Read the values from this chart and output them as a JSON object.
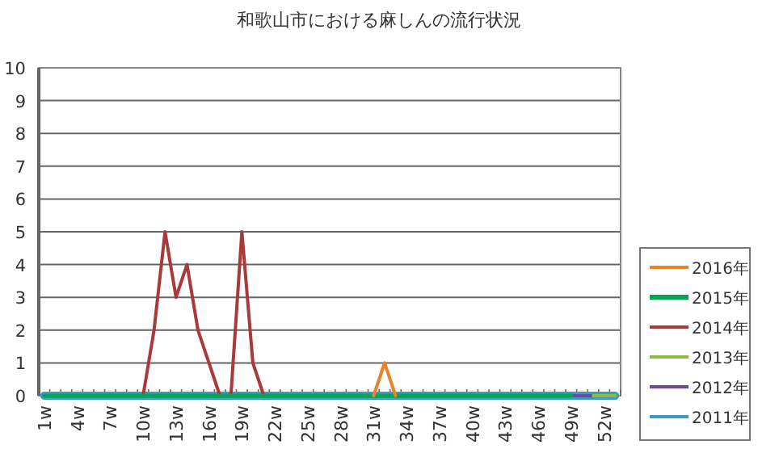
{
  "chart_data": {
    "type": "line",
    "title": "和歌山市における麻しんの流行状況",
    "categories": [
      "1w",
      null,
      null,
      "4w",
      null,
      null,
      "7w",
      null,
      null,
      "10w",
      null,
      null,
      "13w",
      null,
      null,
      "16w",
      null,
      null,
      "19w",
      null,
      null,
      "22w",
      null,
      null,
      "25w",
      null,
      null,
      "28w",
      null,
      null,
      "31w",
      null,
      null,
      "34w",
      null,
      null,
      "37w",
      null,
      null,
      "40w",
      null,
      null,
      "43w",
      null,
      null,
      "46w",
      null,
      null,
      "49w",
      null,
      null,
      "52w",
      null
    ],
    "ylim": [
      0,
      10
    ],
    "yticks": [
      0,
      1,
      2,
      3,
      4,
      5,
      6,
      7,
      8,
      9,
      10
    ],
    "grid": "y",
    "legend": "right",
    "marker": "none",
    "line_style": "solid",
    "series": [
      {
        "name": "2016年",
        "color": "#e8832a",
        "values": [
          null,
          null,
          null,
          null,
          null,
          null,
          null,
          null,
          null,
          null,
          null,
          null,
          null,
          null,
          null,
          null,
          null,
          null,
          null,
          null,
          null,
          null,
          null,
          null,
          null,
          null,
          null,
          null,
          null,
          null,
          0,
          1,
          0,
          null,
          null,
          null,
          null,
          null,
          null,
          null,
          null,
          null,
          null,
          null,
          null,
          null,
          null,
          null,
          null,
          null,
          null,
          null,
          null
        ]
      },
      {
        "name": "2015年",
        "color": "#00a651",
        "values": [
          0,
          0,
          0,
          0,
          0,
          0,
          0,
          0,
          0,
          0,
          0,
          0,
          0,
          0,
          0,
          0,
          0,
          0,
          0,
          0,
          0,
          0,
          0,
          0,
          0,
          0,
          0,
          0,
          0,
          0,
          0,
          0,
          0,
          0,
          0,
          0,
          0,
          0,
          0,
          0,
          0,
          0,
          0,
          0,
          0,
          0,
          0,
          0,
          0,
          null,
          null,
          null,
          null
        ]
      },
      {
        "name": "2014年",
        "color": "#a83a3a",
        "values": [
          null,
          null,
          null,
          null,
          null,
          null,
          null,
          null,
          null,
          0,
          2,
          5,
          3,
          4,
          2,
          1,
          0,
          0,
          5,
          1,
          0,
          null,
          null,
          null,
          null,
          null,
          null,
          null,
          null,
          null,
          null,
          null,
          null,
          null,
          null,
          null,
          null,
          null,
          null,
          null,
          null,
          null,
          null,
          null,
          null,
          null,
          null,
          null,
          null,
          null,
          null,
          null,
          null
        ]
      },
      {
        "name": "2013年",
        "color": "#8dbb3c",
        "values": [
          null,
          null,
          null,
          null,
          null,
          null,
          null,
          null,
          null,
          null,
          null,
          null,
          null,
          null,
          null,
          null,
          null,
          null,
          null,
          null,
          null,
          null,
          null,
          null,
          null,
          null,
          null,
          null,
          null,
          null,
          null,
          null,
          null,
          null,
          null,
          null,
          null,
          null,
          null,
          null,
          null,
          null,
          null,
          null,
          null,
          null,
          null,
          null,
          null,
          null,
          0,
          0,
          0
        ]
      },
      {
        "name": "2012年",
        "color": "#6b4a9e",
        "values": [
          null,
          null,
          null,
          null,
          null,
          null,
          null,
          null,
          null,
          null,
          null,
          null,
          null,
          null,
          null,
          null,
          null,
          null,
          null,
          null,
          null,
          null,
          null,
          null,
          null,
          null,
          null,
          null,
          null,
          null,
          null,
          null,
          null,
          null,
          null,
          null,
          null,
          null,
          null,
          null,
          null,
          null,
          null,
          null,
          null,
          null,
          null,
          null,
          0,
          0,
          0,
          null,
          null
        ]
      },
      {
        "name": "2011年",
        "color": "#3a9cc4",
        "values": [
          0,
          0,
          0,
          0,
          0,
          0,
          0,
          0,
          0,
          0,
          0,
          0,
          0,
          0,
          0,
          0,
          0,
          0,
          0,
          0,
          0,
          0,
          0,
          0,
          0,
          0,
          0,
          0,
          0,
          0,
          0,
          0,
          0,
          0,
          0,
          0,
          0,
          0,
          0,
          0,
          0,
          0,
          0,
          0,
          0,
          0,
          0,
          0,
          0,
          0,
          0,
          0,
          0
        ]
      }
    ]
  }
}
